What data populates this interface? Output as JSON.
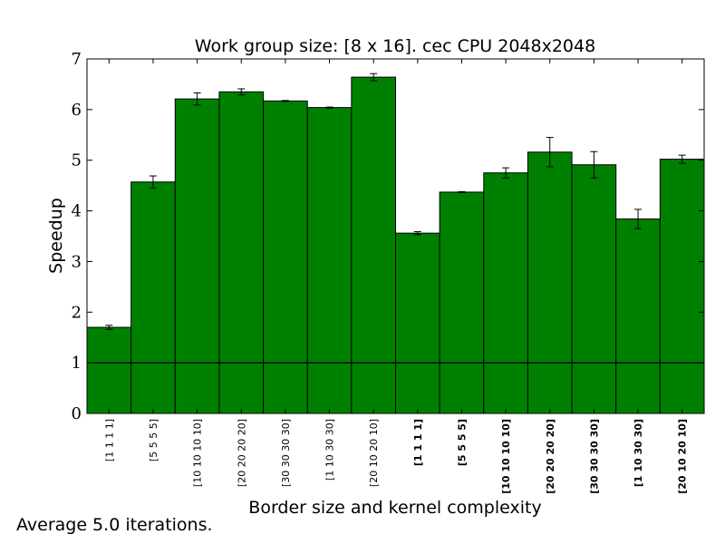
{
  "chart_data": {
    "type": "bar",
    "title": "Work group size: [8 x 16]. cec CPU 2048x2048",
    "xlabel": "Border size and kernel complexity",
    "ylabel": "Speedup",
    "ylim": [
      0,
      7
    ],
    "yticks": [
      0,
      1,
      2,
      3,
      4,
      5,
      6,
      7
    ],
    "reference_line": 1,
    "grid": false,
    "bar_color": "#008000",
    "categories": [
      "[1 1 1 1]",
      "[5 5 5 5]",
      "[10 10 10 10]",
      "[20 20 20 20]",
      "[30 30 30 30]",
      "[1 10 30 30]",
      "[20 10 20 10]",
      "[1 1 1 1]",
      "[5 5 5 5]",
      "[10 10 10 10]",
      "[20 20 20 20]",
      "[30 30 30 30]",
      "[1 10 30 30]",
      "[20 10 20 10]"
    ],
    "category_bold": [
      false,
      false,
      false,
      false,
      false,
      false,
      false,
      true,
      true,
      true,
      true,
      true,
      true,
      true
    ],
    "values": [
      1.7,
      4.57,
      6.21,
      6.35,
      6.17,
      6.04,
      6.64,
      3.56,
      4.37,
      4.75,
      5.16,
      4.91,
      3.84,
      5.02
    ],
    "errors": [
      0.04,
      0.12,
      0.12,
      0.06,
      0.01,
      0.01,
      0.07,
      0.03,
      0.01,
      0.1,
      0.29,
      0.26,
      0.19,
      0.08
    ]
  },
  "footnote": "Average 5.0 iterations."
}
